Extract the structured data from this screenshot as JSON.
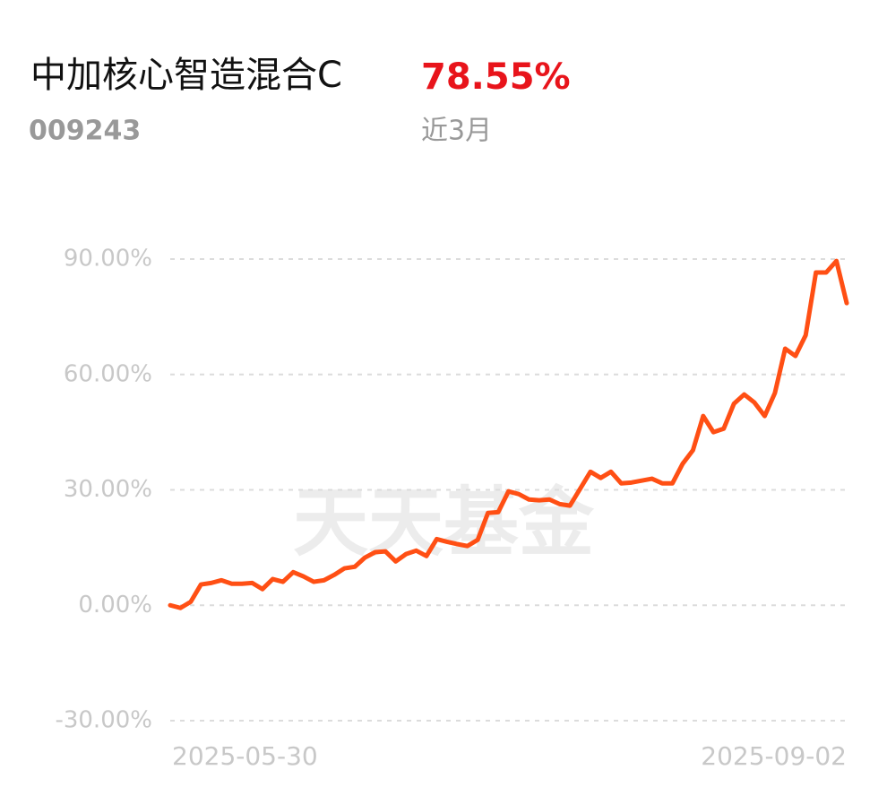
{
  "chart_data": {
    "type": "line",
    "title": "中加核心智造混合C",
    "return_value": "78.55%",
    "code": "009243",
    "period": "近3月",
    "watermark": "天天基金",
    "categories": [
      "2025-05-30",
      null,
      null,
      null,
      null,
      null,
      null,
      null,
      null,
      null,
      null,
      null,
      null,
      null,
      null,
      null,
      null,
      null,
      null,
      null,
      null,
      null,
      null,
      null,
      null,
      null,
      null,
      null,
      null,
      null,
      null,
      null,
      null,
      null,
      null,
      null,
      null,
      null,
      null,
      null,
      null,
      null,
      null,
      null,
      null,
      null,
      null,
      null,
      null,
      null,
      null,
      null,
      null,
      null,
      null,
      null,
      null,
      null,
      null,
      null,
      null,
      null,
      null,
      null,
      null,
      null,
      "2025-09-02"
    ],
    "series": [
      {
        "name": null,
        "color": "#ff4f14",
        "values": [
          0,
          -0.7,
          0.9,
          5.4,
          5.8,
          6.5,
          5.6,
          5.6,
          5.8,
          4.2,
          6.8,
          6.1,
          8.6,
          7.5,
          6.1,
          6.5,
          7.9,
          9.6,
          10,
          12.4,
          13.8,
          14,
          11.4,
          13.3,
          14.2,
          12.8,
          17.2,
          16.5,
          15.9,
          15.4,
          17,
          24,
          24.2,
          29.6,
          28.9,
          27.5,
          27.3,
          27.5,
          26.3,
          25.9,
          30.3,
          34.7,
          33.1,
          34.7,
          31.7,
          31.9,
          32.4,
          32.9,
          31.7,
          31.7,
          36.8,
          40.3,
          49.2,
          45,
          45.9,
          52.4,
          54.8,
          52.7,
          49.2,
          55.2,
          66.7,
          64.8,
          70.2,
          86.5,
          86.5,
          89.5,
          78.55
        ]
      }
    ],
    "ylim": [
      -30,
      90
    ],
    "yticks": [
      {
        "value": -30,
        "label": "-30.00%"
      },
      {
        "value": 0,
        "label": "0.00%"
      },
      {
        "value": 30,
        "label": "30.00%"
      },
      {
        "value": 60,
        "label": "60.00%"
      },
      {
        "value": 90,
        "label": "90.00%"
      }
    ],
    "grid": true
  }
}
